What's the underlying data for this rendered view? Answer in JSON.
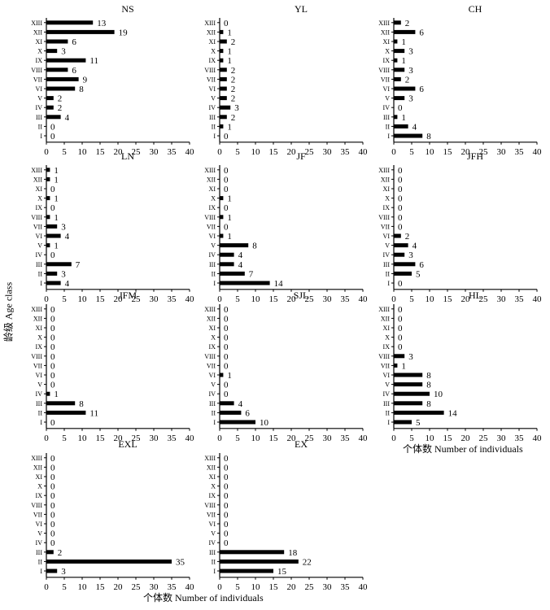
{
  "labels": {
    "y_axis": "龄级 Age class",
    "x_axis": "个体数 Number of individuals"
  },
  "chart_data": {
    "type": "bar",
    "orientation": "horizontal",
    "categories": [
      "I",
      "II",
      "III",
      "IV",
      "V",
      "VI",
      "VII",
      "VIII",
      "IX",
      "X",
      "XI",
      "XII",
      "XIII"
    ],
    "x_ticks": [
      0,
      5,
      10,
      15,
      20,
      25,
      30,
      35,
      40
    ],
    "xlim": [
      0,
      40
    ],
    "bar_color": "#000000",
    "panels": [
      {
        "title": "NS",
        "values": [
          0,
          0,
          4,
          2,
          2,
          8,
          9,
          6,
          11,
          3,
          6,
          19,
          13
        ]
      },
      {
        "title": "YL",
        "values": [
          0,
          1,
          2,
          3,
          2,
          2,
          2,
          2,
          1,
          1,
          2,
          1,
          0
        ]
      },
      {
        "title": "CH",
        "values": [
          8,
          4,
          1,
          0,
          3,
          6,
          2,
          3,
          1,
          3,
          1,
          6,
          2
        ]
      },
      {
        "title": "LN",
        "values": [
          4,
          3,
          7,
          0,
          1,
          4,
          3,
          1,
          0,
          1,
          0,
          1,
          1
        ]
      },
      {
        "title": "JF",
        "values": [
          14,
          7,
          4,
          4,
          8,
          1,
          0,
          1,
          0,
          1,
          0,
          0,
          0
        ]
      },
      {
        "title": "JFH",
        "values": [
          0,
          5,
          6,
          3,
          4,
          2,
          0,
          0,
          0,
          0,
          0,
          0,
          0
        ]
      },
      {
        "title": "JFM",
        "values": [
          0,
          11,
          8,
          1,
          0,
          0,
          0,
          0,
          0,
          0,
          0,
          0,
          0
        ]
      },
      {
        "title": "SJL",
        "values": [
          10,
          6,
          4,
          0,
          0,
          1,
          0,
          0,
          0,
          0,
          0,
          0,
          0
        ]
      },
      {
        "title": "HL",
        "values": [
          5,
          14,
          8,
          10,
          8,
          8,
          1,
          3,
          0,
          0,
          0,
          0,
          0
        ]
      },
      {
        "title": "EXL",
        "values": [
          3,
          35,
          2,
          0,
          0,
          0,
          0,
          0,
          0,
          0,
          0,
          0,
          0
        ]
      },
      {
        "title": "EX",
        "values": [
          15,
          22,
          18,
          0,
          0,
          0,
          0,
          0,
          0,
          0,
          0,
          0,
          0
        ]
      }
    ]
  }
}
